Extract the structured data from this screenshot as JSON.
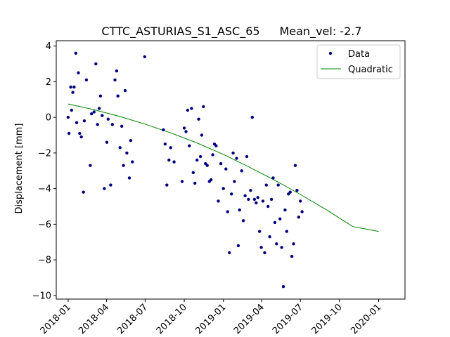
{
  "chart_data": {
    "type": "scatter",
    "title_left": "CTTC_ASTURIAS_S1_ASC_65",
    "title_right": "Mean_vel: -2.7",
    "xlabel": "",
    "ylabel": "Displacement [mm]",
    "xlim": [
      "2017-12-04",
      "2020-03-03"
    ],
    "ylim": [
      -10.2,
      4.3
    ],
    "x_ticks": [
      "2018-01-01",
      "2018-04-01",
      "2018-07-01",
      "2018-10-01",
      "2019-01-01",
      "2019-04-01",
      "2019-07-01",
      "2019-10-01",
      "2020-01-01"
    ],
    "x_tick_labels": [
      "2018-01",
      "2018-04",
      "2018-07",
      "2018-10",
      "2019-01",
      "2019-04",
      "2019-07",
      "2019-10",
      "2020-01"
    ],
    "y_ticks": [
      4,
      2,
      0,
      -2,
      -4,
      -6,
      -8,
      -10
    ],
    "y_tick_labels": [
      "4",
      "2",
      "0",
      "−2",
      "−4",
      "−6",
      "−8",
      "−10"
    ],
    "grid": false,
    "legend_position": "top-right",
    "series": [
      {
        "name": "Data",
        "kind": "scatter",
        "color": "#000080",
        "points": [
          {
            "x": "2018-01-01",
            "y": 0.0
          },
          {
            "x": "2018-01-03",
            "y": -0.9
          },
          {
            "x": "2018-01-07",
            "y": 1.7
          },
          {
            "x": "2018-01-09",
            "y": 0.4
          },
          {
            "x": "2018-01-12",
            "y": 1.4
          },
          {
            "x": "2018-01-15",
            "y": 1.7
          },
          {
            "x": "2018-01-19",
            "y": 3.6
          },
          {
            "x": "2018-01-21",
            "y": -0.3
          },
          {
            "x": "2018-01-25",
            "y": 2.5
          },
          {
            "x": "2018-01-28",
            "y": -0.9
          },
          {
            "x": "2018-02-01",
            "y": -1.1
          },
          {
            "x": "2018-02-06",
            "y": -4.2
          },
          {
            "x": "2018-02-08",
            "y": -0.2
          },
          {
            "x": "2018-02-13",
            "y": 2.1
          },
          {
            "x": "2018-02-22",
            "y": -2.7
          },
          {
            "x": "2018-02-25",
            "y": 0.2
          },
          {
            "x": "2018-03-03",
            "y": 0.3
          },
          {
            "x": "2018-03-07",
            "y": 3.0
          },
          {
            "x": "2018-03-11",
            "y": -0.4
          },
          {
            "x": "2018-03-15",
            "y": 0.5
          },
          {
            "x": "2018-03-18",
            "y": 1.2
          },
          {
            "x": "2018-03-22",
            "y": 0.1
          },
          {
            "x": "2018-03-27",
            "y": -4.0
          },
          {
            "x": "2018-04-02",
            "y": -1.4
          },
          {
            "x": "2018-04-05",
            "y": -0.1
          },
          {
            "x": "2018-04-11",
            "y": -3.8
          },
          {
            "x": "2018-04-15",
            "y": -0.4
          },
          {
            "x": "2018-04-21",
            "y": 2.1
          },
          {
            "x": "2018-04-25",
            "y": 2.6
          },
          {
            "x": "2018-04-28",
            "y": 1.2
          },
          {
            "x": "2018-05-03",
            "y": -1.7
          },
          {
            "x": "2018-05-07",
            "y": -0.5
          },
          {
            "x": "2018-05-11",
            "y": -2.7
          },
          {
            "x": "2018-05-15",
            "y": 1.5
          },
          {
            "x": "2018-05-19",
            "y": -2.0
          },
          {
            "x": "2018-05-25",
            "y": -3.4
          },
          {
            "x": "2018-05-28",
            "y": -1.3
          },
          {
            "x": "2018-06-01",
            "y": -2.5
          },
          {
            "x": "2018-06-30",
            "y": 3.4
          },
          {
            "x": "2018-08-13",
            "y": -0.7
          },
          {
            "x": "2018-08-17",
            "y": -1.5
          },
          {
            "x": "2018-08-21",
            "y": -3.8
          },
          {
            "x": "2018-08-26",
            "y": -2.4
          },
          {
            "x": "2018-08-30",
            "y": -1.7
          },
          {
            "x": "2018-09-07",
            "y": -2.5
          },
          {
            "x": "2018-09-26",
            "y": -3.6
          },
          {
            "x": "2018-10-01",
            "y": -0.6
          },
          {
            "x": "2018-10-05",
            "y": -0.8
          },
          {
            "x": "2018-10-09",
            "y": 0.4
          },
          {
            "x": "2018-10-13",
            "y": -1.6
          },
          {
            "x": "2018-10-18",
            "y": 0.5
          },
          {
            "x": "2018-10-22",
            "y": -3.1
          },
          {
            "x": "2018-10-26",
            "y": -3.7
          },
          {
            "x": "2018-10-31",
            "y": -2.4
          },
          {
            "x": "2018-11-04",
            "y": -0.1
          },
          {
            "x": "2018-11-08",
            "y": -2.2
          },
          {
            "x": "2018-11-11",
            "y": -1.0
          },
          {
            "x": "2018-11-15",
            "y": 0.6
          },
          {
            "x": "2018-11-20",
            "y": -2.6
          },
          {
            "x": "2018-11-24",
            "y": -2.7
          },
          {
            "x": "2018-11-29",
            "y": -3.6
          },
          {
            "x": "2018-12-03",
            "y": -3.5
          },
          {
            "x": "2018-12-07",
            "y": -2.1
          },
          {
            "x": "2018-12-11",
            "y": -1.5
          },
          {
            "x": "2018-12-15",
            "y": -1.6
          },
          {
            "x": "2018-12-20",
            "y": -4.7
          },
          {
            "x": "2018-12-26",
            "y": -2.6
          },
          {
            "x": "2019-01-01",
            "y": -4.0
          },
          {
            "x": "2019-01-07",
            "y": -2.9
          },
          {
            "x": "2019-01-11",
            "y": -5.3
          },
          {
            "x": "2019-01-15",
            "y": -7.6
          },
          {
            "x": "2019-01-20",
            "y": -4.3
          },
          {
            "x": "2019-01-24",
            "y": -2.0
          },
          {
            "x": "2019-01-27",
            "y": -3.6
          },
          {
            "x": "2019-02-01",
            "y": -2.3
          },
          {
            "x": "2019-02-05",
            "y": -7.2
          },
          {
            "x": "2019-02-08",
            "y": -5.2
          },
          {
            "x": "2019-02-13",
            "y": -3.0
          },
          {
            "x": "2019-02-17",
            "y": -5.8
          },
          {
            "x": "2019-02-21",
            "y": -4.4
          },
          {
            "x": "2019-02-25",
            "y": -2.2
          },
          {
            "x": "2019-03-01",
            "y": -4.6
          },
          {
            "x": "2019-03-06",
            "y": -4.1
          },
          {
            "x": "2019-03-10",
            "y": 0.0
          },
          {
            "x": "2019-03-15",
            "y": -4.6
          },
          {
            "x": "2019-03-19",
            "y": -4.8
          },
          {
            "x": "2019-03-23",
            "y": -4.5
          },
          {
            "x": "2019-03-27",
            "y": -6.4
          },
          {
            "x": "2019-03-31",
            "y": -7.3
          },
          {
            "x": "2019-04-04",
            "y": -4.7
          },
          {
            "x": "2019-04-08",
            "y": -7.6
          },
          {
            "x": "2019-04-12",
            "y": -3.8
          },
          {
            "x": "2019-04-16",
            "y": -5.0
          },
          {
            "x": "2019-04-20",
            "y": -6.7
          },
          {
            "x": "2019-04-24",
            "y": -4.6
          },
          {
            "x": "2019-04-28",
            "y": -3.4
          },
          {
            "x": "2019-05-02",
            "y": -5.9
          },
          {
            "x": "2019-05-06",
            "y": -7.1
          },
          {
            "x": "2019-05-10",
            "y": -3.8
          },
          {
            "x": "2019-05-14",
            "y": -5.7
          },
          {
            "x": "2019-05-18",
            "y": -7.3
          },
          {
            "x": "2019-05-22",
            "y": -9.5
          },
          {
            "x": "2019-05-26",
            "y": -5.2
          },
          {
            "x": "2019-05-30",
            "y": -6.4
          },
          {
            "x": "2019-06-03",
            "y": -4.3
          },
          {
            "x": "2019-06-07",
            "y": -4.2
          },
          {
            "x": "2019-06-11",
            "y": -7.8
          },
          {
            "x": "2019-06-15",
            "y": -7.1
          },
          {
            "x": "2019-06-19",
            "y": -2.7
          },
          {
            "x": "2019-06-23",
            "y": -4.1
          },
          {
            "x": "2019-06-27",
            "y": -5.6
          },
          {
            "x": "2019-07-01",
            "y": -4.7
          },
          {
            "x": "2019-07-05",
            "y": -5.3
          }
        ]
      },
      {
        "name": "Quadratic",
        "kind": "line",
        "color": "#008000",
        "points": [
          {
            "x": "2018-01-01",
            "y": 0.75
          },
          {
            "x": "2018-03-01",
            "y": 0.44
          },
          {
            "x": "2018-05-01",
            "y": 0.06
          },
          {
            "x": "2018-07-01",
            "y": -0.38
          },
          {
            "x": "2018-09-01",
            "y": -0.89
          },
          {
            "x": "2018-11-01",
            "y": -1.45
          },
          {
            "x": "2019-01-01",
            "y": -2.08
          },
          {
            "x": "2019-03-01",
            "y": -2.77
          },
          {
            "x": "2019-05-01",
            "y": -3.52
          },
          {
            "x": "2019-07-01",
            "y": -4.33
          },
          {
            "x": "2019-09-01",
            "y": -5.2
          },
          {
            "x": "2019-11-01",
            "y": -6.13
          },
          {
            "x": "2020-01-01",
            "y": -6.4
          }
        ]
      }
    ]
  }
}
